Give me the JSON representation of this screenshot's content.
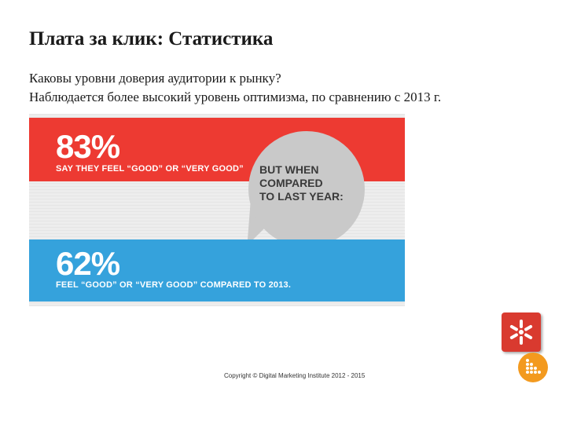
{
  "slide": {
    "title": "Плата за клик: Статистика",
    "subtitle_lines": [
      "Каковы уровни доверия аудитории к рынку?",
      "Наблюдается более высокий уровень оптимизма, по сравнению с 2013 г."
    ]
  },
  "infographic": {
    "top_band": {
      "percent": "83%",
      "caption": "SAY THEY FEEL “GOOD” OR “VERY GOOD”",
      "color": "#ed3a32"
    },
    "bubble_lines": [
      "BUT WHEN",
      "COMPARED",
      "TO LAST YEAR:"
    ],
    "bottom_band": {
      "percent": "62%",
      "caption": "FEEL “GOOD” OR “VERY GOOD” COMPARED TO 2013.",
      "color": "#35a2dc"
    }
  },
  "footer": {
    "copyright": "Copyright © Digital Marketing Institute 2012 - 2015"
  },
  "icons": {
    "red_logo": "asterisk-logo-icon",
    "orange_logo": "dots-logo-icon"
  }
}
